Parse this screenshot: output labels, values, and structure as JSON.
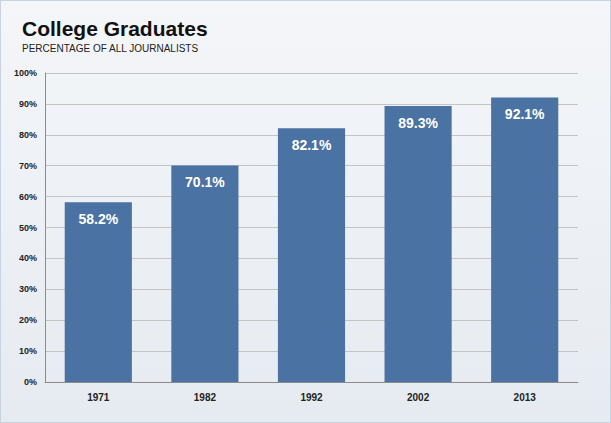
{
  "chart_data": {
    "type": "bar",
    "title": "College Graduates",
    "subtitle": "PERCENTAGE OF ALL JOURNALISTS",
    "categories": [
      "1971",
      "1982",
      "1992",
      "2002",
      "2013"
    ],
    "values": [
      58.2,
      70.1,
      82.1,
      89.3,
      92.1
    ],
    "value_labels": [
      "58.2%",
      "70.1%",
      "82.1%",
      "89.3%",
      "92.1%"
    ],
    "color": "#4a72a2",
    "ylim": [
      0,
      100
    ],
    "yticks": [
      {
        "value": 0,
        "label": "0%"
      },
      {
        "value": 10,
        "label": "10%"
      },
      {
        "value": 20,
        "label": "20%"
      },
      {
        "value": 30,
        "label": "30%"
      },
      {
        "value": 40,
        "label": "40%"
      },
      {
        "value": 50,
        "label": "50%"
      },
      {
        "value": 60,
        "label": "60%"
      },
      {
        "value": 70,
        "label": "70%"
      },
      {
        "value": 80,
        "label": "80%"
      },
      {
        "value": 90,
        "label": "90%"
      },
      {
        "value": 100,
        "label": "100%"
      }
    ],
    "grid": true,
    "data_labels": true
  }
}
